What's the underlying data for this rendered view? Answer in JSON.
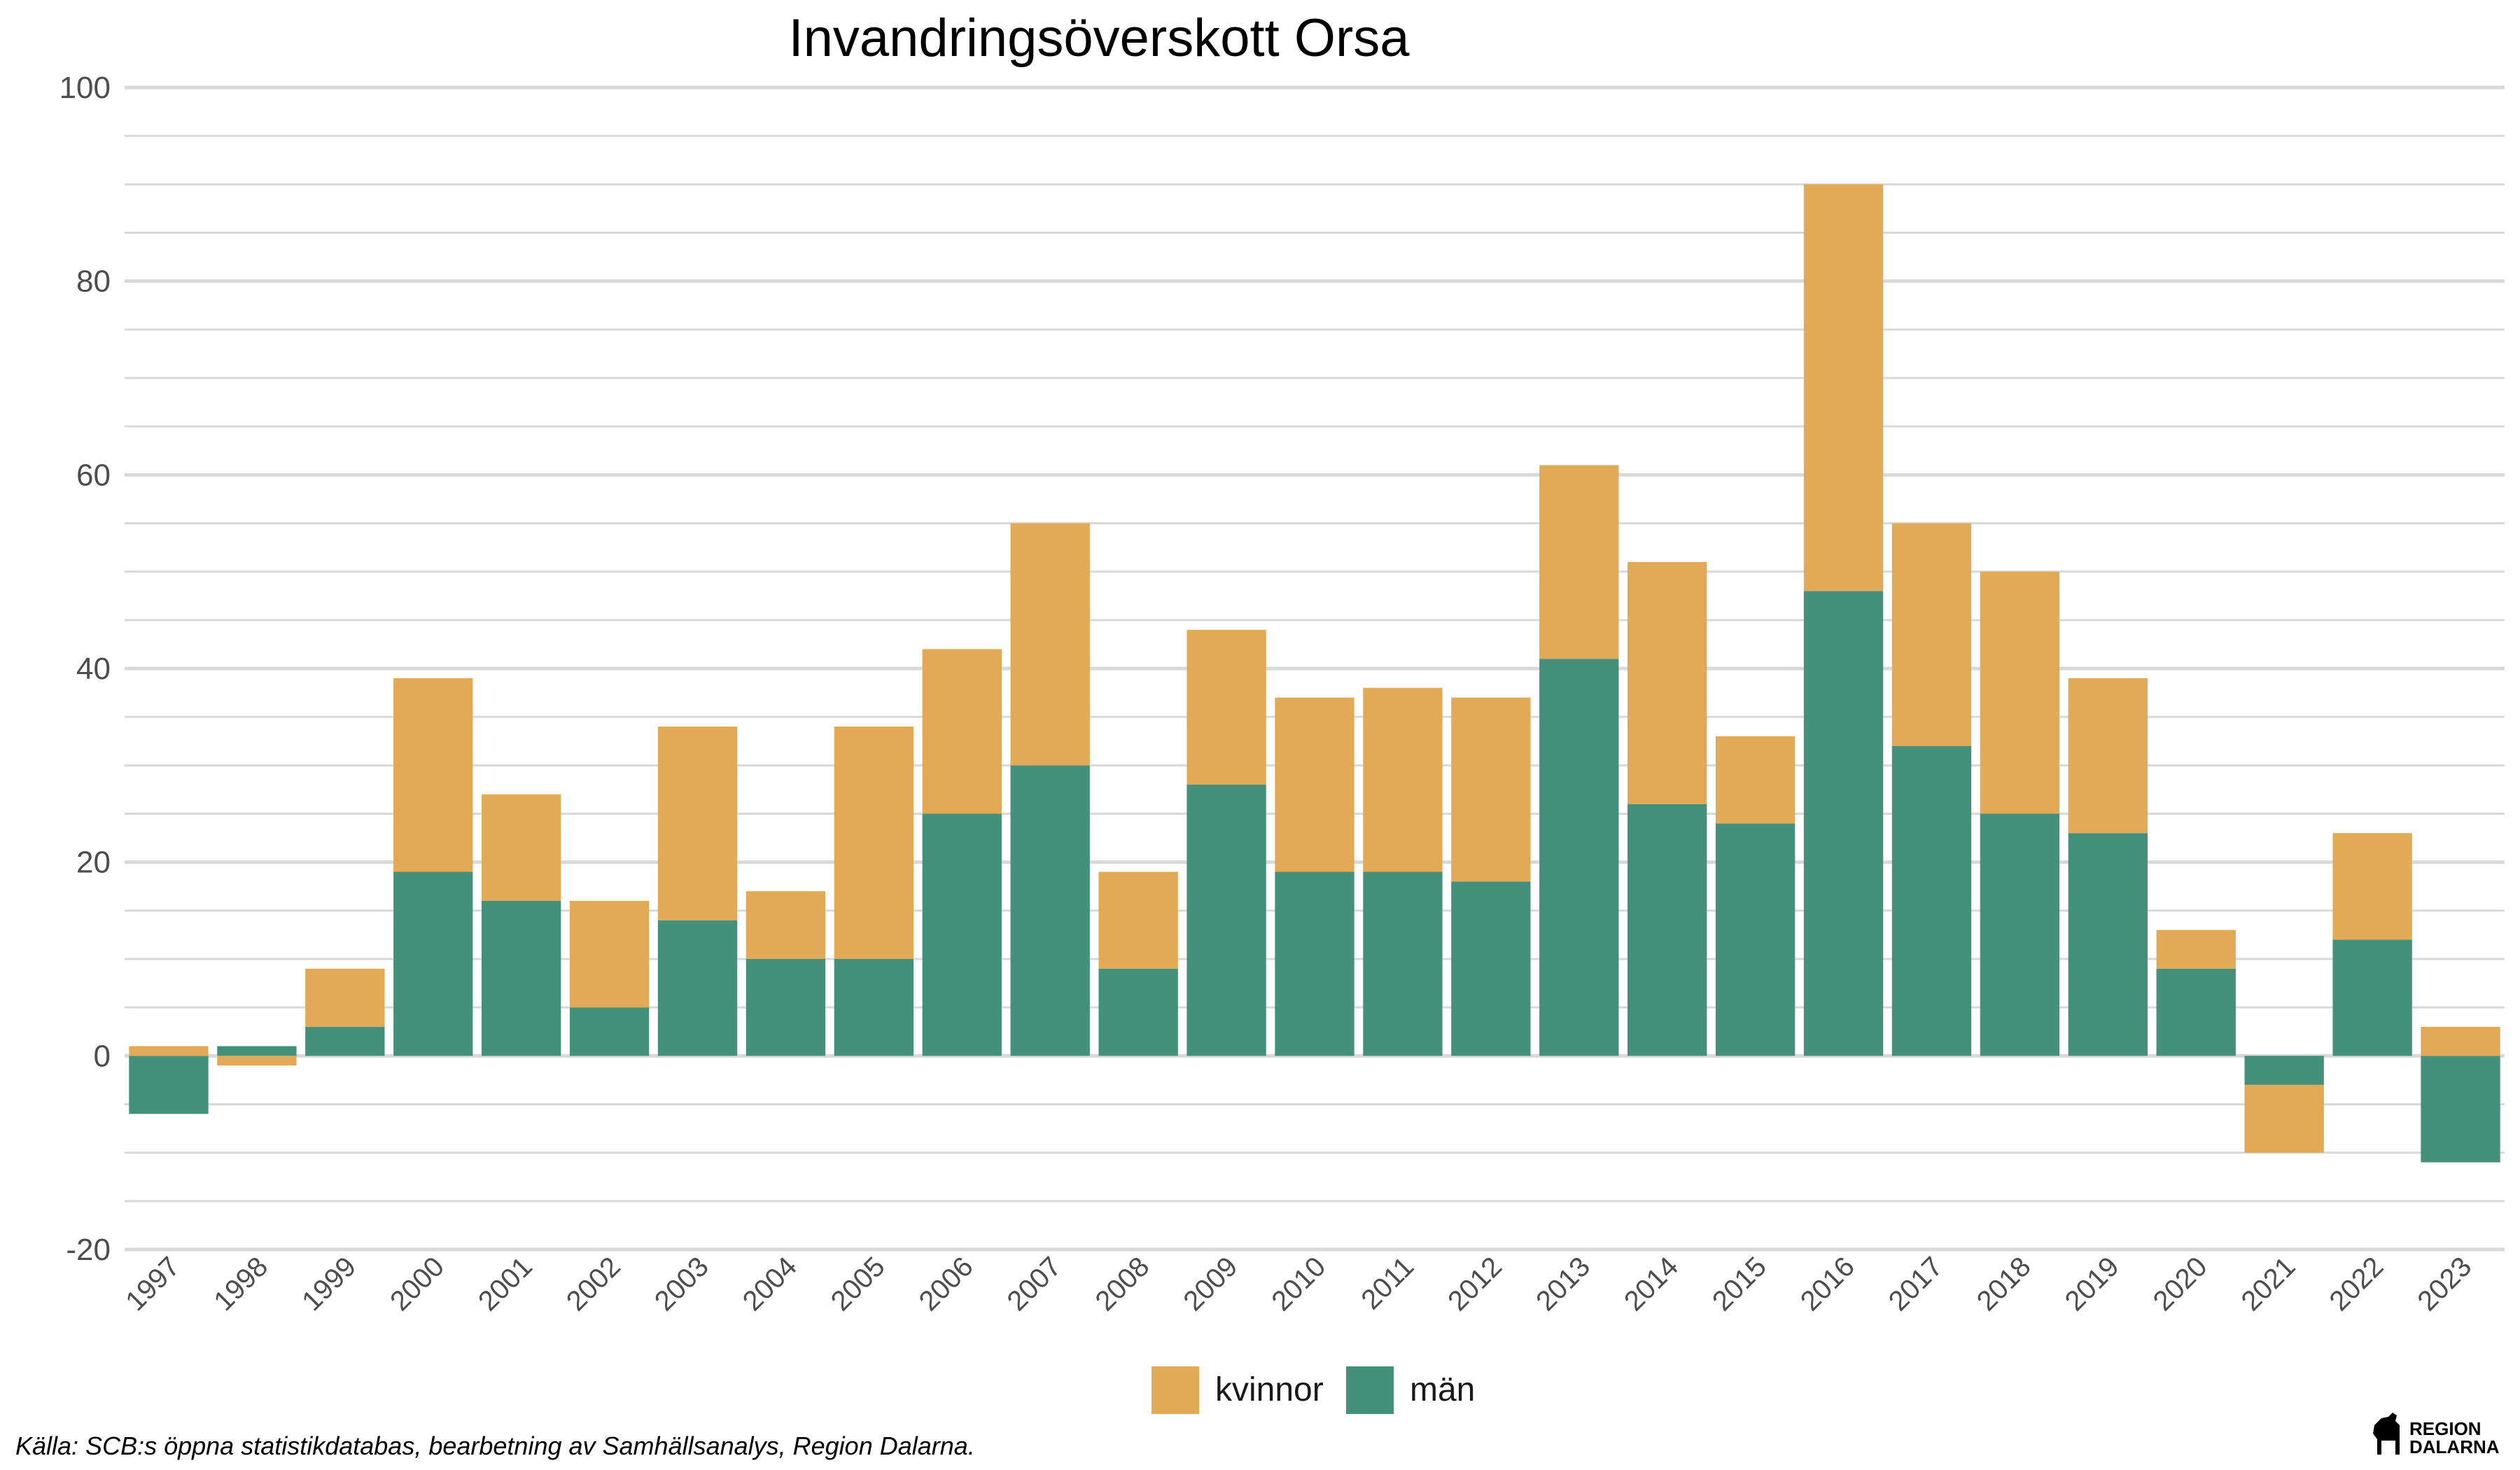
{
  "chart_data": {
    "type": "bar",
    "stacked": true,
    "title": "Invandringsöverskott Orsa",
    "xlabel": "",
    "ylabel": "",
    "ylim": [
      -20,
      100
    ],
    "y_ticks": [
      -20,
      0,
      20,
      40,
      60,
      80,
      100
    ],
    "grid": true,
    "legend_position": "bottom",
    "categories": [
      "1997",
      "1998",
      "1999",
      "2000",
      "2001",
      "2002",
      "2003",
      "2004",
      "2005",
      "2006",
      "2007",
      "2008",
      "2009",
      "2010",
      "2011",
      "2012",
      "2013",
      "2014",
      "2015",
      "2016",
      "2017",
      "2018",
      "2019",
      "2020",
      "2021",
      "2022",
      "2023"
    ],
    "series": [
      {
        "name": "män",
        "color": "#45907a",
        "values": [
          -6,
          1,
          3,
          19,
          16,
          5,
          14,
          10,
          10,
          25,
          30,
          9,
          28,
          19,
          19,
          18,
          41,
          26,
          24,
          48,
          32,
          25,
          23,
          9,
          -3,
          12,
          -11
        ]
      },
      {
        "name": "kvinnor",
        "color": "#e2a956",
        "values": [
          1,
          -1,
          6,
          20,
          11,
          11,
          20,
          7,
          24,
          17,
          25,
          10,
          16,
          18,
          19,
          19,
          20,
          25,
          9,
          42,
          23,
          25,
          16,
          4,
          -7,
          11,
          3
        ]
      }
    ],
    "legend_order": [
      "kvinnor",
      "män"
    ]
  },
  "caption": "Källa: SCB:s öppna statistikdatabas, bearbetning av Samhällsanalys, Region Dalarna.",
  "logo": {
    "line1": "REGION",
    "line2": "DALARNA",
    "icon": "dala-horse-icon"
  }
}
